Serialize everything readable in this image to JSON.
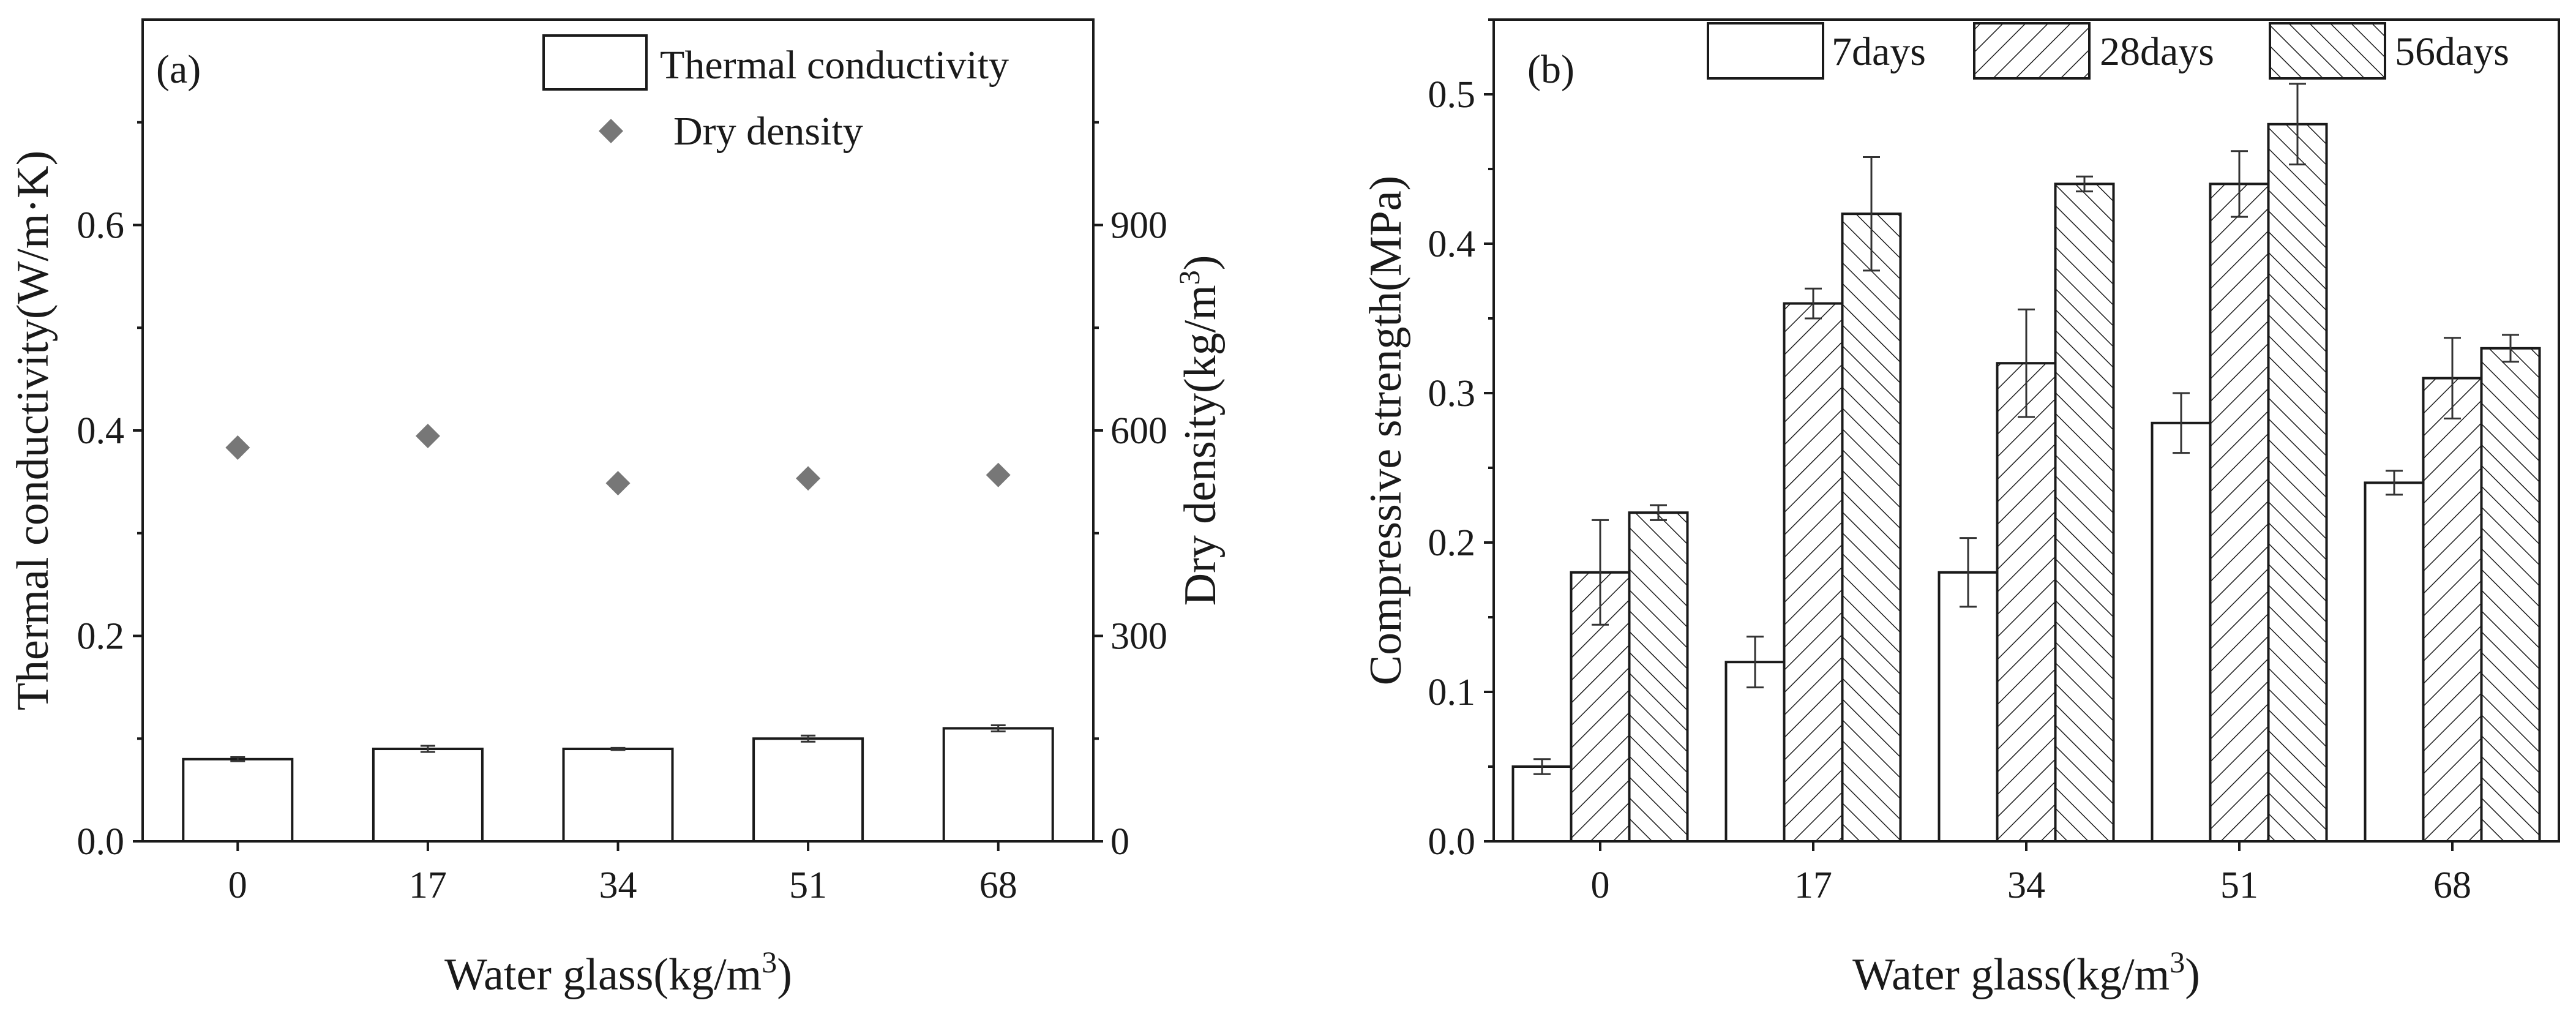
{
  "chart_data": [
    {
      "panel": "(a)",
      "type": "bar",
      "categories": [
        "0",
        "17",
        "34",
        "51",
        "68"
      ],
      "xlabel": "Water glass(kg/m",
      "xlabel_sup": "3",
      "xlabel_close": ")",
      "ylabel": "Thermal conductivity(W/m·K)",
      "ylim": [
        0,
        0.8
      ],
      "yticks": [
        "0.0",
        "0.2",
        "0.4",
        "0.6"
      ],
      "y2label": "Dry density(kg/m",
      "y2label_sup": "3",
      "y2label_close": ")",
      "y2lim": [
        0,
        1200
      ],
      "y2ticks": [
        "0",
        "300",
        "600",
        "900"
      ],
      "series": [
        {
          "name": "Thermal conductivity",
          "kind": "bar",
          "axis": "left",
          "values": [
            0.08,
            0.09,
            0.09,
            0.1,
            0.11
          ],
          "errors": [
            0.002,
            0.003,
            0.001,
            0.003,
            0.003
          ]
        },
        {
          "name": "Dry density",
          "kind": "scatter",
          "axis": "right",
          "marker": "diamond",
          "color": "#777777",
          "values": [
            575,
            592,
            523,
            530,
            535
          ]
        }
      ],
      "legend": "top-right"
    },
    {
      "panel": "(b)",
      "type": "bar",
      "categories": [
        "0",
        "17",
        "34",
        "51",
        "68"
      ],
      "xlabel": "Water glass(kg/m",
      "xlabel_sup": "3",
      "xlabel_close": ")",
      "ylabel": "Compressive strength(MPa)",
      "ylim": [
        0,
        0.55
      ],
      "yticks": [
        "0.0",
        "0.1",
        "0.2",
        "0.3",
        "0.4",
        "0.5"
      ],
      "series": [
        {
          "name": "7days",
          "pattern": "none",
          "values": [
            0.05,
            0.12,
            0.18,
            0.28,
            0.24
          ],
          "errors": [
            0.005,
            0.017,
            0.023,
            0.02,
            0.008
          ]
        },
        {
          "name": "28days",
          "pattern": "forward-hatch",
          "values": [
            0.18,
            0.36,
            0.32,
            0.44,
            0.31
          ],
          "errors": [
            0.035,
            0.01,
            0.036,
            0.022,
            0.027
          ]
        },
        {
          "name": "56days",
          "pattern": "back-hatch",
          "values": [
            0.22,
            0.42,
            0.44,
            0.48,
            0.33
          ],
          "errors": [
            0.005,
            0.038,
            0.005,
            0.027,
            0.009
          ]
        }
      ],
      "legend": "top"
    }
  ]
}
